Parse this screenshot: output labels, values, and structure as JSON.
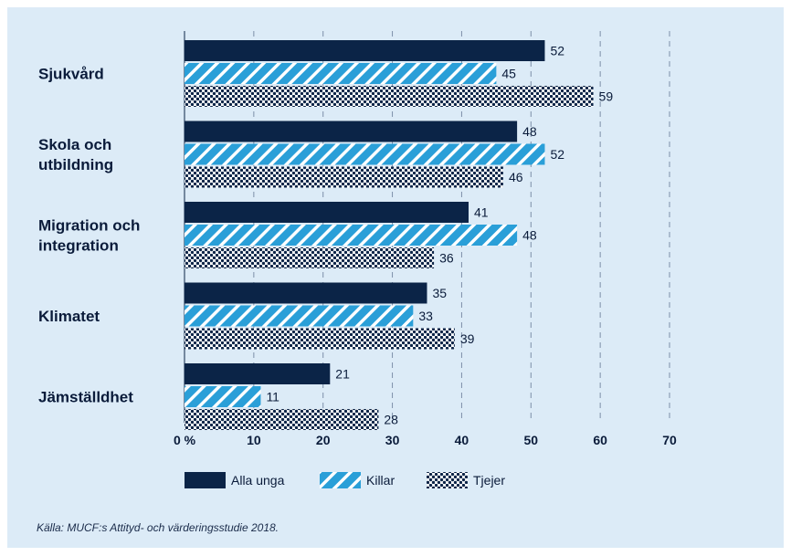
{
  "colors": {
    "alla_unga": "#0b2447",
    "killar": "#2a9fd8",
    "tjejer_dots": "#0b2447",
    "background": "#dcebf7"
  },
  "chart_data": {
    "type": "bar",
    "orientation": "horizontal",
    "categories": [
      [
        "Sjukvård"
      ],
      [
        "Skola och",
        "utbildning"
      ],
      [
        "Migration och",
        "integration"
      ],
      [
        "Klimatet"
      ],
      [
        "Jämställdhet"
      ]
    ],
    "series": [
      {
        "name": "Alla unga",
        "pattern": "solid",
        "values": [
          52,
          48,
          41,
          35,
          21
        ]
      },
      {
        "name": "Killar",
        "pattern": "stripes",
        "values": [
          45,
          52,
          48,
          33,
          11
        ]
      },
      {
        "name": "Tjejer",
        "pattern": "dots",
        "values": [
          59,
          46,
          36,
          39,
          28
        ]
      }
    ],
    "xlim": [
      0,
      70
    ],
    "xticks": [
      0,
      10,
      20,
      30,
      40,
      50,
      60,
      70
    ],
    "xtick_labels": [
      "0 %",
      "10",
      "20",
      "30",
      "40",
      "50",
      "60",
      "70"
    ],
    "grid": "vertical dashed",
    "legend_position": "bottom"
  },
  "source": "Källa: MUCF:s Attityd- och värderingsstudie 2018."
}
